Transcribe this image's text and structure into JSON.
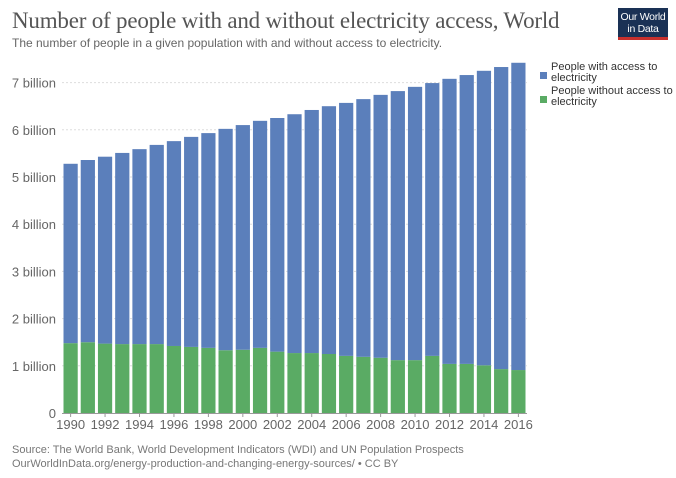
{
  "header": {
    "title": "Number of people with and without electricity access, World",
    "subtitle": "The number of people in a given population with and without access to electricity.",
    "logo_line1": "Our World",
    "logo_line2": "in Data"
  },
  "footer": {
    "source": "Source: The World Bank, World Development Indicators (WDI) and UN Population Prospects",
    "url": "OurWorldInData.org/energy-production-and-changing-energy-sources/ • CC BY"
  },
  "colors": {
    "with_access": "#5b7fbb",
    "without_access": "#5aab64",
    "logo_bg": "#1a3155",
    "logo_bar": "#c8302d"
  },
  "chart_data": {
    "type": "bar",
    "stacked": true,
    "title": "Number of people with and without electricity access, World",
    "xlabel": "",
    "ylabel": "",
    "ylim": [
      0,
      7500000000
    ],
    "grid": true,
    "legend_position": "right",
    "y_ticks": [
      {
        "value": 0,
        "label": "0"
      },
      {
        "value": 1000000000,
        "label": "1 billion"
      },
      {
        "value": 2000000000,
        "label": "2 billion"
      },
      {
        "value": 3000000000,
        "label": "3 billion"
      },
      {
        "value": 4000000000,
        "label": "4 billion"
      },
      {
        "value": 5000000000,
        "label": "5 billion"
      },
      {
        "value": 6000000000,
        "label": "6 billion"
      },
      {
        "value": 7000000000,
        "label": "7 billion"
      }
    ],
    "categories": [
      "1990",
      "1991",
      "1992",
      "1993",
      "1994",
      "1995",
      "1996",
      "1997",
      "1998",
      "1999",
      "2000",
      "2001",
      "2002",
      "2003",
      "2004",
      "2005",
      "2006",
      "2007",
      "2008",
      "2009",
      "2010",
      "2011",
      "2012",
      "2013",
      "2014",
      "2015",
      "2016"
    ],
    "x_tick_labels": [
      "1990",
      "1992",
      "1994",
      "1996",
      "1998",
      "2000",
      "2002",
      "2004",
      "2006",
      "2008",
      "2010",
      "2012",
      "2014",
      "2016"
    ],
    "series": [
      {
        "name": "People without access to electricity",
        "color": "#5aab64",
        "values": [
          1480000000.0,
          1500000000.0,
          1470000000.0,
          1460000000.0,
          1460000000.0,
          1460000000.0,
          1420000000.0,
          1400000000.0,
          1380000000.0,
          1330000000.0,
          1340000000.0,
          1380000000.0,
          1300000000.0,
          1270000000.0,
          1270000000.0,
          1250000000.0,
          1210000000.0,
          1190000000.0,
          1170000000.0,
          1120000000.0,
          1120000000.0,
          1210000000.0,
          1040000000.0,
          1040000000.0,
          1010000000.0,
          930000000.0,
          910000000.0
        ]
      },
      {
        "name": "People with access to electricity",
        "color": "#5b7fbb",
        "values": [
          3800000000.0,
          3860000000.0,
          3960000000.0,
          4050000000.0,
          4130000000.0,
          4220000000.0,
          4340000000.0,
          4450000000.0,
          4550000000.0,
          4690000000.0,
          4760000000.0,
          4810000000.0,
          4950000000.0,
          5060000000.0,
          5150000000.0,
          5250000000.0,
          5360000000.0,
          5460000000.0,
          5570000000.0,
          5700000000.0,
          5790000000.0,
          5780000000.0,
          6040000000.0,
          6120000000.0,
          6240000000.0,
          6400000000.0,
          6510000000.0
        ]
      }
    ],
    "legend": [
      {
        "label": "People with access to electricity",
        "color": "#5b7fbb"
      },
      {
        "label": "People without access to electricity",
        "color": "#5aab64"
      }
    ]
  }
}
